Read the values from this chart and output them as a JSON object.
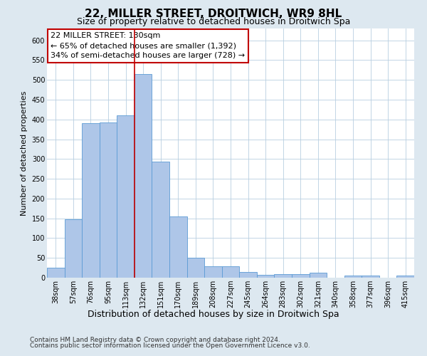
{
  "title": "22, MILLER STREET, DROITWICH, WR9 8HL",
  "subtitle": "Size of property relative to detached houses in Droitwich Spa",
  "xlabel": "Distribution of detached houses by size in Droitwich Spa",
  "ylabel": "Number of detached properties",
  "categories": [
    "38sqm",
    "57sqm",
    "76sqm",
    "95sqm",
    "113sqm",
    "132sqm",
    "151sqm",
    "170sqm",
    "189sqm",
    "208sqm",
    "227sqm",
    "245sqm",
    "264sqm",
    "283sqm",
    "302sqm",
    "321sqm",
    "340sqm",
    "358sqm",
    "377sqm",
    "396sqm",
    "415sqm"
  ],
  "values": [
    25,
    148,
    390,
    393,
    410,
    515,
    293,
    155,
    50,
    28,
    28,
    15,
    7,
    9,
    9,
    12,
    0,
    5,
    5,
    0,
    5
  ],
  "bar_color": "#aec6e8",
  "bar_edge_color": "#5b9bd5",
  "vline_x": 4.5,
  "vline_color": "#c00000",
  "annotation_text": "22 MILLER STREET: 130sqm\n← 65% of detached houses are smaller (1,392)\n34% of semi-detached houses are larger (728) →",
  "annotation_box_color": "white",
  "annotation_box_edge_color": "#c00000",
  "background_color": "#dde8f0",
  "plot_background": "white",
  "grid_color": "#b8cfe0",
  "ylim": [
    0,
    630
  ],
  "yticks": [
    0,
    50,
    100,
    150,
    200,
    250,
    300,
    350,
    400,
    450,
    500,
    550,
    600
  ],
  "footer_line1": "Contains HM Land Registry data © Crown copyright and database right 2024.",
  "footer_line2": "Contains public sector information licensed under the Open Government Licence v3.0.",
  "title_fontsize": 11,
  "subtitle_fontsize": 9,
  "xlabel_fontsize": 9,
  "ylabel_fontsize": 8,
  "tick_fontsize": 7,
  "annotation_fontsize": 8,
  "footer_fontsize": 6.5
}
